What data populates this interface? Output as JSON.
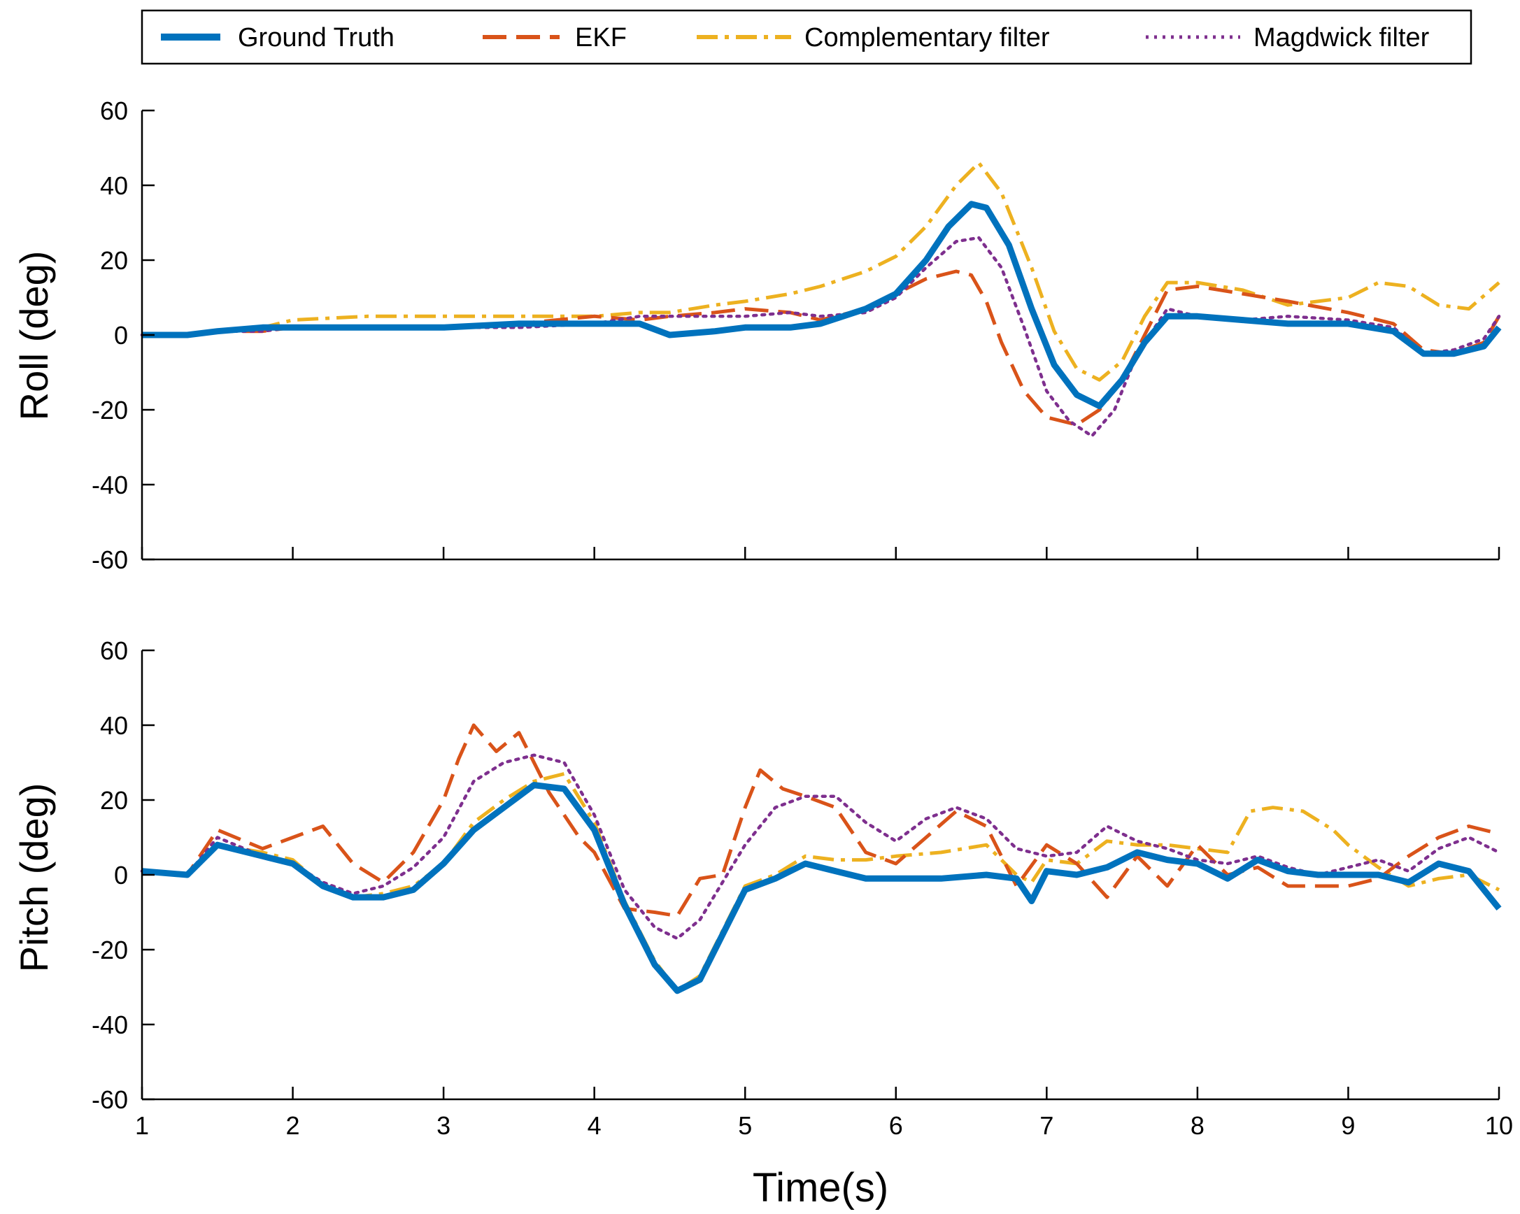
{
  "chart_data": [
    {
      "type": "line",
      "title": "",
      "xlabel": "",
      "ylabel": "Roll (deg)",
      "xlim": [
        1,
        10
      ],
      "ylim": [
        -60,
        60
      ],
      "xticks": [
        1,
        2,
        3,
        4,
        5,
        6,
        7,
        8,
        9,
        10
      ],
      "yticks": [
        -60,
        -40,
        -20,
        0,
        20,
        40,
        60
      ],
      "grid": false,
      "series": [
        {
          "name": "Ground Truth",
          "style": "solid",
          "color": "#0072BD",
          "x": [
            1.0,
            1.3,
            1.5,
            1.8,
            2.0,
            2.5,
            3.0,
            3.5,
            4.0,
            4.3,
            4.5,
            4.8,
            5.0,
            5.3,
            5.5,
            5.8,
            6.0,
            6.2,
            6.35,
            6.5,
            6.6,
            6.75,
            6.9,
            7.05,
            7.2,
            7.35,
            7.5,
            7.65,
            7.8,
            8.0,
            8.3,
            8.6,
            9.0,
            9.3,
            9.5,
            9.7,
            9.9,
            10.0
          ],
          "y": [
            0,
            0,
            1,
            2,
            2,
            2,
            2,
            3,
            3,
            3,
            0,
            1,
            2,
            2,
            3,
            7,
            11,
            20,
            29,
            35,
            34,
            24,
            7,
            -8,
            -16,
            -19,
            -12,
            -2,
            5,
            5,
            4,
            3,
            3,
            1,
            -5,
            -5,
            -3,
            2
          ]
        },
        {
          "name": "EKF",
          "style": "dash",
          "color": "#D95319",
          "x": [
            1.0,
            1.3,
            1.5,
            1.8,
            2.0,
            2.5,
            3.0,
            3.5,
            4.0,
            4.3,
            4.5,
            4.8,
            5.0,
            5.3,
            5.5,
            5.8,
            6.0,
            6.2,
            6.4,
            6.5,
            6.6,
            6.7,
            6.85,
            7.0,
            7.2,
            7.35,
            7.5,
            7.65,
            7.8,
            8.0,
            8.3,
            8.6,
            9.0,
            9.3,
            9.5,
            9.7,
            9.9,
            10.0
          ],
          "y": [
            0,
            0,
            1,
            1,
            2,
            2,
            2,
            3,
            5,
            4,
            5,
            6,
            7,
            6,
            4,
            7,
            11,
            15,
            17,
            16,
            9,
            -2,
            -15,
            -22,
            -24,
            -20,
            -12,
            0,
            12,
            13,
            11,
            9,
            6,
            3,
            -4,
            -5,
            -2,
            5
          ]
        },
        {
          "name": "Complementary filter",
          "style": "dashdot",
          "color": "#EDB120",
          "x": [
            1.0,
            1.3,
            1.5,
            1.8,
            2.0,
            2.5,
            3.0,
            3.5,
            4.0,
            4.3,
            4.5,
            4.8,
            5.0,
            5.3,
            5.5,
            5.8,
            6.0,
            6.2,
            6.4,
            6.55,
            6.7,
            6.9,
            7.05,
            7.2,
            7.35,
            7.5,
            7.65,
            7.8,
            8.0,
            8.3,
            8.6,
            9.0,
            9.2,
            9.4,
            9.6,
            9.8,
            10.0
          ],
          "y": [
            0,
            0,
            1,
            2,
            4,
            5,
            5,
            5,
            5,
            6,
            6,
            8,
            9,
            11,
            13,
            17,
            21,
            29,
            40,
            46,
            38,
            18,
            1,
            -9,
            -12,
            -7,
            5,
            14,
            14,
            12,
            8,
            10,
            14,
            13,
            8,
            7,
            14
          ]
        },
        {
          "name": "Magdwick filter",
          "style": "dot",
          "color": "#7E2F8E",
          "x": [
            1.0,
            1.3,
            1.5,
            1.8,
            2.0,
            2.5,
            3.0,
            3.5,
            4.0,
            4.3,
            4.5,
            4.8,
            5.0,
            5.3,
            5.5,
            5.8,
            6.0,
            6.2,
            6.4,
            6.55,
            6.7,
            6.85,
            7.0,
            7.15,
            7.3,
            7.45,
            7.6,
            7.8,
            8.0,
            8.3,
            8.6,
            9.0,
            9.3,
            9.5,
            9.7,
            9.9,
            10.0
          ],
          "y": [
            0,
            0,
            1,
            1,
            2,
            2,
            2,
            2,
            3,
            5,
            5,
            5,
            5,
            6,
            5,
            6,
            10,
            18,
            25,
            26,
            18,
            2,
            -15,
            -23,
            -27,
            -20,
            -5,
            7,
            5,
            4,
            5,
            4,
            2,
            -5,
            -4,
            -1,
            5
          ]
        }
      ]
    },
    {
      "type": "line",
      "title": "",
      "xlabel": "Time(s)",
      "ylabel": "Pitch (deg)",
      "xlim": [
        1,
        10
      ],
      "ylim": [
        -60,
        60
      ],
      "xticks": [
        1,
        2,
        3,
        4,
        5,
        6,
        7,
        8,
        9,
        10
      ],
      "yticks": [
        -60,
        -40,
        -20,
        0,
        20,
        40,
        60
      ],
      "grid": false,
      "series": [
        {
          "name": "Ground Truth",
          "style": "solid",
          "color": "#0072BD",
          "x": [
            1.0,
            1.3,
            1.5,
            1.8,
            2.0,
            2.2,
            2.4,
            2.6,
            2.8,
            3.0,
            3.2,
            3.4,
            3.6,
            3.8,
            4.0,
            4.2,
            4.4,
            4.55,
            4.7,
            4.85,
            5.0,
            5.2,
            5.4,
            5.6,
            5.8,
            6.0,
            6.3,
            6.6,
            6.8,
            6.9,
            7.0,
            7.2,
            7.4,
            7.6,
            7.8,
            8.0,
            8.2,
            8.4,
            8.6,
            8.8,
            9.0,
            9.2,
            9.4,
            9.6,
            9.8,
            10.0
          ],
          "y": [
            1,
            0,
            8,
            5,
            3,
            -3,
            -6,
            -6,
            -4,
            3,
            12,
            18,
            24,
            23,
            12,
            -8,
            -24,
            -31,
            -28,
            -16,
            -4,
            -1,
            3,
            1,
            -1,
            -1,
            -1,
            0,
            -1,
            -7,
            1,
            0,
            2,
            6,
            4,
            3,
            -1,
            4,
            1,
            0,
            0,
            0,
            -2,
            3,
            1,
            -9
          ]
        },
        {
          "name": "EKF",
          "style": "dash",
          "color": "#D95319",
          "x": [
            1.0,
            1.3,
            1.5,
            1.8,
            2.0,
            2.2,
            2.4,
            2.6,
            2.8,
            3.0,
            3.1,
            3.2,
            3.35,
            3.5,
            3.7,
            3.9,
            4.0,
            4.2,
            4.4,
            4.55,
            4.7,
            4.85,
            5.0,
            5.1,
            5.25,
            5.4,
            5.6,
            5.8,
            6.0,
            6.2,
            6.4,
            6.6,
            6.8,
            7.0,
            7.2,
            7.4,
            7.6,
            7.8,
            8.0,
            8.2,
            8.4,
            8.6,
            8.8,
            9.0,
            9.2,
            9.4,
            9.6,
            9.8,
            10.0
          ],
          "y": [
            1,
            0,
            12,
            7,
            10,
            13,
            3,
            -2,
            6,
            20,
            31,
            40,
            33,
            38,
            22,
            10,
            6,
            -9,
            -10,
            -11,
            -1,
            0,
            18,
            28,
            23,
            21,
            18,
            6,
            3,
            10,
            17,
            13,
            -3,
            8,
            3,
            -6,
            5,
            -3,
            8,
            0,
            2,
            -3,
            -3,
            -3,
            -1,
            5,
            10,
            13,
            11
          ]
        },
        {
          "name": "Complementary filter",
          "style": "dashdot",
          "color": "#EDB120",
          "x": [
            1.0,
            1.3,
            1.5,
            1.8,
            2.0,
            2.2,
            2.4,
            2.6,
            2.8,
            3.0,
            3.2,
            3.4,
            3.6,
            3.8,
            4.0,
            4.2,
            4.4,
            4.55,
            4.7,
            4.85,
            5.0,
            5.2,
            5.4,
            5.6,
            5.8,
            6.0,
            6.3,
            6.6,
            6.8,
            6.9,
            7.0,
            7.2,
            7.4,
            7.6,
            7.8,
            8.0,
            8.2,
            8.35,
            8.5,
            8.7,
            8.9,
            9.0,
            9.2,
            9.4,
            9.6,
            9.8,
            10.0
          ],
          "y": [
            1,
            0,
            8,
            6,
            4,
            -3,
            -6,
            -5,
            -3,
            3,
            14,
            20,
            25,
            27,
            14,
            -7,
            -23,
            -31,
            -27,
            -15,
            -3,
            0,
            5,
            4,
            4,
            5,
            6,
            8,
            0,
            -2,
            4,
            3,
            9,
            8,
            8,
            7,
            6,
            17,
            18,
            17,
            12,
            8,
            2,
            -3,
            -1,
            0,
            -4
          ]
        },
        {
          "name": "Magdwick filter",
          "style": "dot",
          "color": "#7E2F8E",
          "x": [
            1.0,
            1.3,
            1.5,
            1.8,
            2.0,
            2.2,
            2.4,
            2.6,
            2.8,
            3.0,
            3.2,
            3.4,
            3.6,
            3.8,
            4.0,
            4.2,
            4.4,
            4.55,
            4.7,
            4.85,
            5.0,
            5.2,
            5.4,
            5.6,
            5.8,
            6.0,
            6.2,
            6.4,
            6.6,
            6.8,
            7.0,
            7.2,
            7.4,
            7.6,
            7.8,
            8.0,
            8.2,
            8.4,
            8.6,
            8.8,
            9.0,
            9.2,
            9.4,
            9.6,
            9.8,
            10.0
          ],
          "y": [
            1,
            0,
            10,
            5,
            3,
            -2,
            -5,
            -3,
            2,
            10,
            25,
            30,
            32,
            30,
            16,
            -4,
            -14,
            -17,
            -12,
            -2,
            8,
            18,
            21,
            21,
            14,
            9,
            15,
            18,
            15,
            7,
            5,
            6,
            13,
            9,
            7,
            4,
            3,
            5,
            2,
            0,
            2,
            4,
            1,
            7,
            10,
            6
          ]
        }
      ]
    }
  ]
}
